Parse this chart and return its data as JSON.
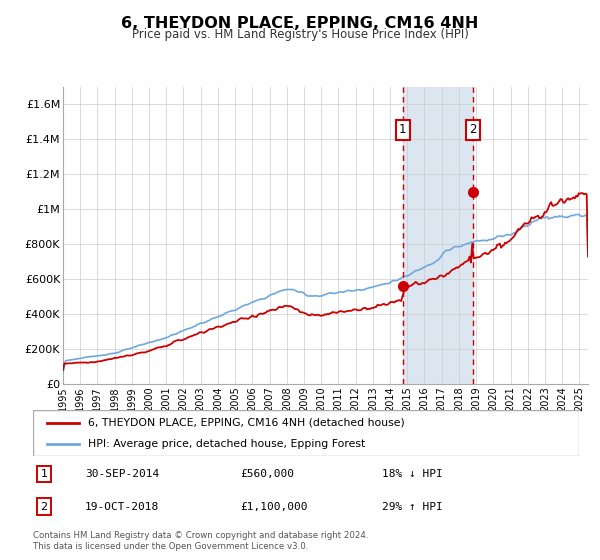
{
  "title": "6, THEYDON PLACE, EPPING, CM16 4NH",
  "subtitle": "Price paid vs. HM Land Registry's House Price Index (HPI)",
  "ylim": [
    0,
    1700000
  ],
  "xlim_start": 1995.0,
  "xlim_end": 2025.5,
  "yticks": [
    0,
    200000,
    400000,
    600000,
    800000,
    1000000,
    1200000,
    1400000,
    1600000
  ],
  "ytick_labels": [
    "£0",
    "£200K",
    "£400K",
    "£600K",
    "£800K",
    "£1M",
    "£1.2M",
    "£1.4M",
    "£1.6M"
  ],
  "hpi_color": "#6fa8dc",
  "price_color": "#cc0000",
  "marker_color": "#cc0000",
  "shaded_region_color": "#dce6f1",
  "dashed_line_color": "#cc0000",
  "event1_x": 2014.747,
  "event1_y": 560000,
  "event1_label": "1",
  "event1_date": "30-SEP-2014",
  "event1_price": "£560,000",
  "event1_hpi": "18% ↓ HPI",
  "event2_x": 2018.8,
  "event2_y": 1100000,
  "event2_label": "2",
  "event2_date": "19-OCT-2018",
  "event2_price": "£1,100,000",
  "event2_hpi": "29% ↑ HPI",
  "legend_line1": "6, THEYDON PLACE, EPPING, CM16 4NH (detached house)",
  "legend_line2": "HPI: Average price, detached house, Epping Forest",
  "footer_line1": "Contains HM Land Registry data © Crown copyright and database right 2024.",
  "footer_line2": "This data is licensed under the Open Government Licence v3.0.",
  "background_color": "#ffffff",
  "plot_bg_color": "#ffffff",
  "grid_color": "#cccccc"
}
